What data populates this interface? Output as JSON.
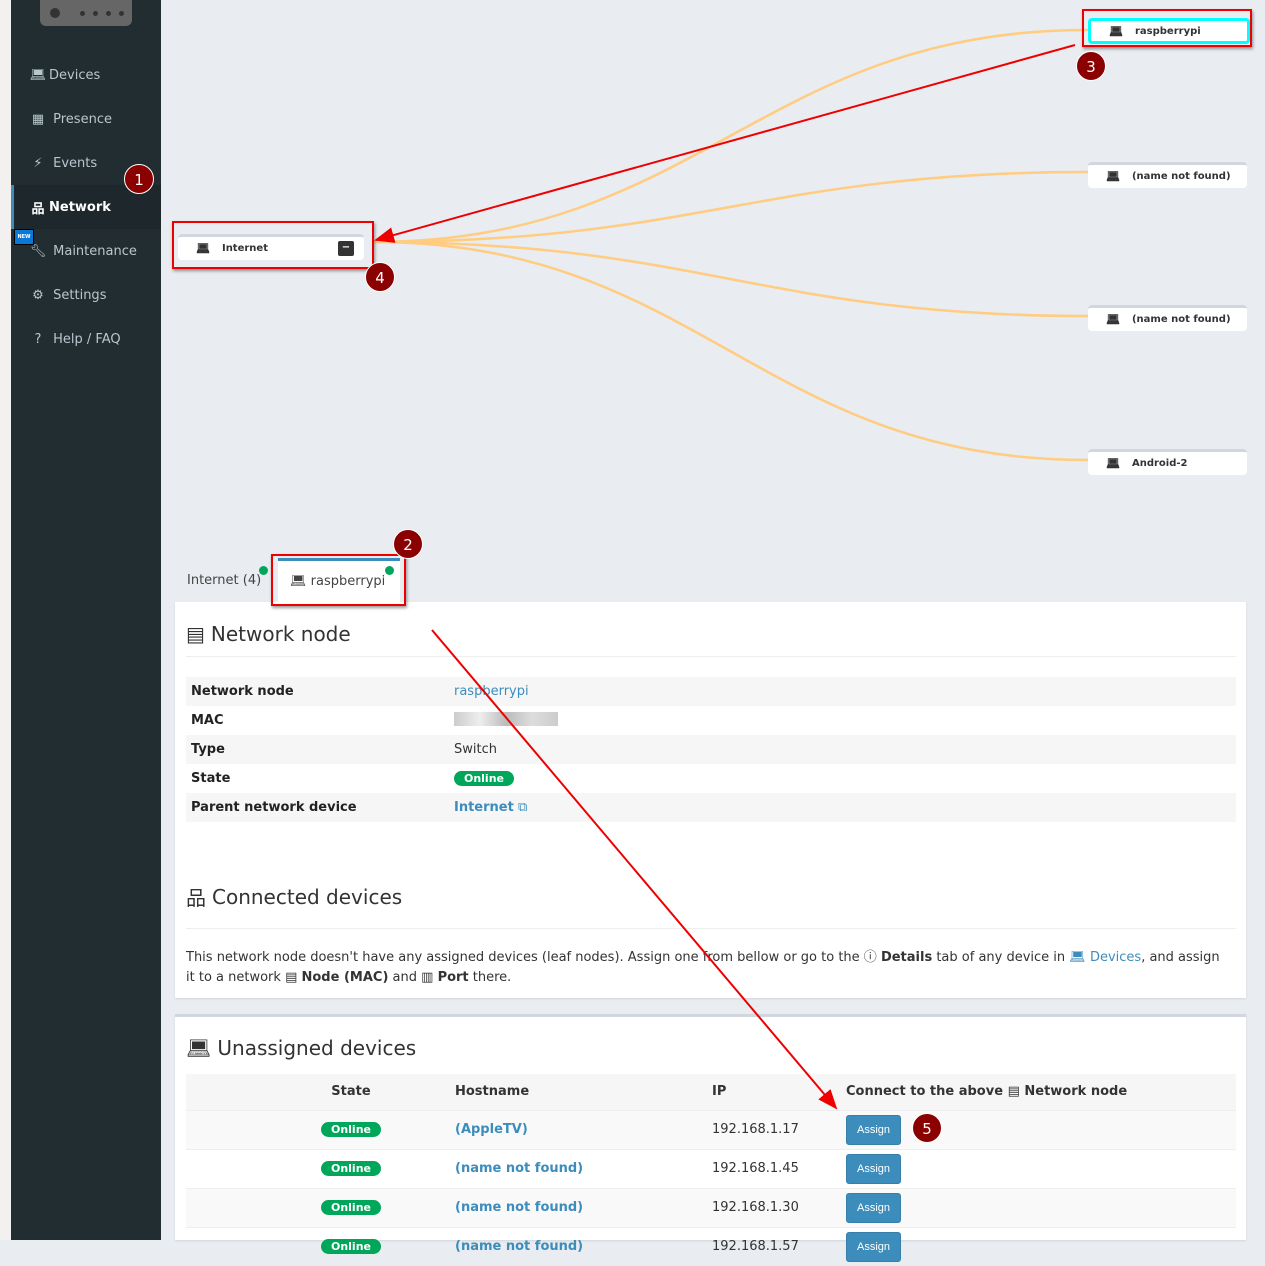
{
  "sidebar": {
    "items": [
      {
        "label": "Devices",
        "icon": "laptop-icon"
      },
      {
        "label": "Presence",
        "icon": "calendar-icon"
      },
      {
        "label": "Events",
        "icon": "bolt-icon"
      },
      {
        "label": "Network",
        "icon": "sitemap-icon",
        "active": true
      },
      {
        "label": "Maintenance",
        "icon": "wrench-icon",
        "badge": "NEW"
      },
      {
        "label": "Settings",
        "icon": "gear-icon"
      },
      {
        "label": "Help / FAQ",
        "icon": "question-icon"
      }
    ]
  },
  "graph": {
    "root": "Internet",
    "leaves": [
      "raspberrypi",
      "(name not found)",
      "(name not found)",
      "Android-2"
    ],
    "edge_color": "#ffcc80"
  },
  "annotations": [
    "1",
    "2",
    "3",
    "4",
    "5"
  ],
  "tabs": [
    {
      "label": "Internet (4)"
    },
    {
      "label": "raspberrypi",
      "active": true
    }
  ],
  "node": {
    "title": "Network node",
    "rows": [
      {
        "k": "Network node",
        "v": "raspberrypi"
      },
      {
        "k": "MAC",
        "v": ""
      },
      {
        "k": "Type",
        "v": "Switch"
      },
      {
        "k": "State",
        "v": "Online"
      },
      {
        "k": "Parent network device",
        "v": "Internet"
      }
    ]
  },
  "connected": {
    "title": "Connected devices",
    "t1": "This network node doesn't have any assigned devices (leaf nodes). Assign one from bellow or go to the ",
    "details": "Details",
    "t2": " tab of any device in ",
    "devices": "Devices",
    "t3": ", and assign it to a network ",
    "node_mac": "Node (MAC)",
    "t4": " and ",
    "port": "Port",
    "t5": " there."
  },
  "unassigned": {
    "title": "Unassigned devices",
    "headers": [
      "State",
      "Hostname",
      "IP",
      "Connect to the above",
      "Network node"
    ],
    "rows": [
      {
        "state": "Online",
        "host": "(AppleTV)",
        "ip": "192.168.1.17",
        "btn": "Assign"
      },
      {
        "state": "Online",
        "host": "(name not found)",
        "ip": "192.168.1.45",
        "btn": "Assign"
      },
      {
        "state": "Online",
        "host": "(name not found)",
        "ip": "192.168.1.30",
        "btn": "Assign"
      },
      {
        "state": "Online",
        "host": "(name not found)",
        "ip": "192.168.1.57",
        "btn": "Assign"
      }
    ]
  },
  "colors": {
    "sidebar": "#222d32",
    "accent": "#3c8dbc",
    "online": "#00a65a",
    "annotation": "#e00000"
  }
}
